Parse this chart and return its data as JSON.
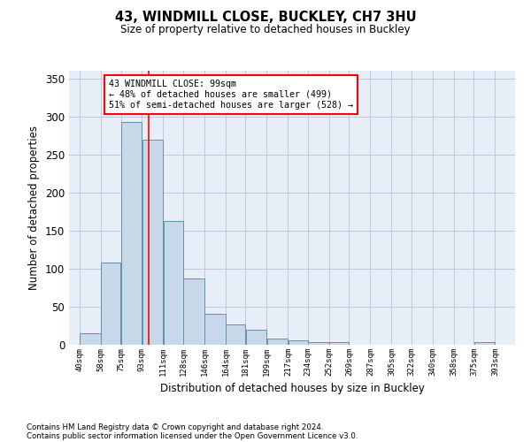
{
  "title1": "43, WINDMILL CLOSE, BUCKLEY, CH7 3HU",
  "title2": "Size of property relative to detached houses in Buckley",
  "xlabel": "Distribution of detached houses by size in Buckley",
  "ylabel": "Number of detached properties",
  "footnote1": "Contains HM Land Registry data © Crown copyright and database right 2024.",
  "footnote2": "Contains public sector information licensed under the Open Government Licence v3.0.",
  "bar_left_edges": [
    40,
    58,
    75,
    93,
    111,
    128,
    146,
    164,
    181,
    199,
    217,
    234,
    252,
    269,
    287,
    305,
    322,
    340,
    358,
    375
  ],
  "bar_widths": [
    18,
    17,
    18,
    18,
    17,
    18,
    18,
    17,
    18,
    18,
    17,
    18,
    17,
    18,
    18,
    17,
    18,
    18,
    17,
    18
  ],
  "bar_heights": [
    15,
    108,
    293,
    270,
    163,
    87,
    41,
    27,
    20,
    8,
    6,
    4,
    3,
    0,
    0,
    0,
    0,
    0,
    0,
    3
  ],
  "bar_color": "#c8d8e8",
  "bar_edgecolor": "#6090b0",
  "grid_color": "#c0c8d8",
  "bg_color": "#e8eef8",
  "red_line_x": 99,
  "annotation_text": "43 WINDMILL CLOSE: 99sqm\n← 48% of detached houses are smaller (499)\n51% of semi-detached houses are larger (528) →",
  "annotation_box_color": "white",
  "annotation_box_edgecolor": "red",
  "xlim": [
    31,
    410
  ],
  "ylim": [
    0,
    360
  ],
  "yticks": [
    0,
    50,
    100,
    150,
    200,
    250,
    300,
    350
  ],
  "xtick_labels": [
    "40sqm",
    "58sqm",
    "75sqm",
    "93sqm",
    "111sqm",
    "128sqm",
    "146sqm",
    "164sqm",
    "181sqm",
    "199sqm",
    "217sqm",
    "234sqm",
    "252sqm",
    "269sqm",
    "287sqm",
    "305sqm",
    "322sqm",
    "340sqm",
    "358sqm",
    "375sqm",
    "393sqm"
  ],
  "xtick_positions": [
    40,
    58,
    75,
    93,
    111,
    128,
    146,
    164,
    181,
    199,
    217,
    234,
    252,
    269,
    287,
    305,
    322,
    340,
    358,
    375,
    393
  ]
}
